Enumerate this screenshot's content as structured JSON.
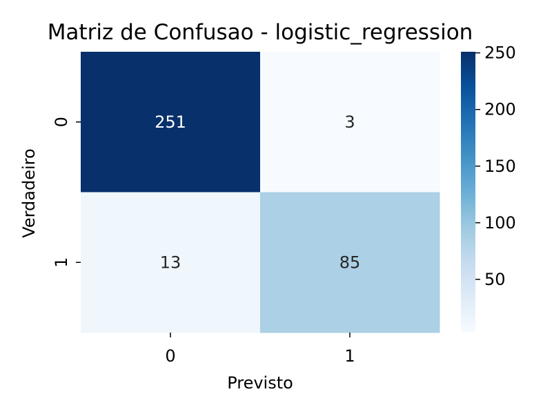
{
  "chart_data": {
    "type": "heatmap",
    "title": "Matriz de Confusao - logistic_regression",
    "xlabel": "Previsto",
    "ylabel": "Verdadeiro",
    "x_categories": [
      "0",
      "1"
    ],
    "y_categories": [
      "0",
      "1"
    ],
    "values": [
      [
        251,
        3
      ],
      [
        13,
        85
      ]
    ],
    "colormap": "Blues",
    "color_range": [
      3,
      251
    ],
    "colorbar_ticks": [
      50,
      100,
      150,
      200,
      250
    ],
    "annotations": true
  }
}
